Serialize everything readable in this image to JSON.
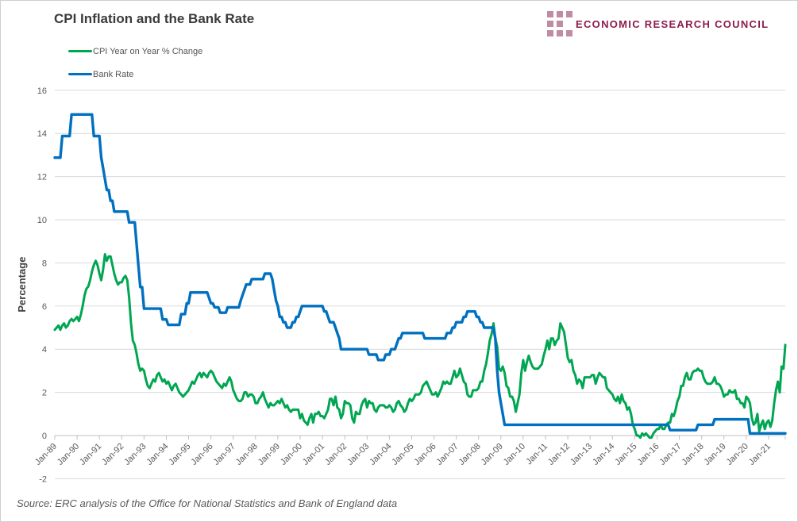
{
  "header": {
    "title": "CPI Inflation and the Bank Rate"
  },
  "logo": {
    "text": "ECONOMIC RESEARCH COUNCIL",
    "brand_color": "#8e1b4d",
    "square_color": "#bf8ca3"
  },
  "legend": [
    {
      "label": "CPI Year on Year % Change",
      "color": "#00a651"
    },
    {
      "label": "Bank Rate",
      "color": "#0070c0"
    }
  ],
  "source_note": "Source: ERC analysis of the Office for National Statistics and Bank of England data",
  "chart_data": {
    "type": "line",
    "title": "CPI Inflation and the Bank Rate",
    "xlabel": "",
    "ylabel": "Percentage",
    "ylim": [
      -2,
      16
    ],
    "ytick_interval": 2,
    "grid": "horizontal",
    "gridline_color": "#d9d9d9",
    "axis_color": "#bfbfbf",
    "tick_label_color": "#595959",
    "legend_position": "top-left",
    "x_unit": "monthly",
    "x_start": "Jan-1989",
    "x_end": "Oct-2021",
    "xtick_labels": [
      "Jan-89",
      "Jan-90",
      "Jan-91",
      "Jan-92",
      "Jan-93",
      "Jan-94",
      "Jan-95",
      "Jan-96",
      "Jan-97",
      "Jan-98",
      "Jan-99",
      "Jan-00",
      "Jan-01",
      "Jan-02",
      "Jan-03",
      "Jan-04",
      "Jan-05",
      "Jan-06",
      "Jan-07",
      "Jan-08",
      "Jan-09",
      "Jan-10",
      "Jan-11",
      "Jan-12",
      "Jan-13",
      "Jan-14",
      "Jan-15",
      "Jan-16",
      "Jan-17",
      "Jan-18",
      "Jan-19",
      "Jan-20",
      "Jan-21"
    ],
    "series": [
      {
        "name": "CPI Year on Year % Change",
        "color": "#00a651",
        "stroke_width": 3,
        "values": [
          4.9,
          5.0,
          5.1,
          4.9,
          5.1,
          5.2,
          5.0,
          5.1,
          5.3,
          5.4,
          5.3,
          5.4,
          5.5,
          5.3,
          5.6,
          6.0,
          6.5,
          6.8,
          6.9,
          7.2,
          7.6,
          7.9,
          8.1,
          7.9,
          7.5,
          7.2,
          7.7,
          8.4,
          8.1,
          8.3,
          8.3,
          7.9,
          7.5,
          7.2,
          7.0,
          7.1,
          7.1,
          7.3,
          7.4,
          7.2,
          6.4,
          5.2,
          4.4,
          4.2,
          3.8,
          3.3,
          3.0,
          3.1,
          3.0,
          2.6,
          2.3,
          2.2,
          2.4,
          2.6,
          2.5,
          2.8,
          2.9,
          2.7,
          2.5,
          2.6,
          2.4,
          2.5,
          2.3,
          2.1,
          2.3,
          2.4,
          2.2,
          2.0,
          1.9,
          1.8,
          1.9,
          2.0,
          2.1,
          2.3,
          2.5,
          2.4,
          2.6,
          2.8,
          2.9,
          2.7,
          2.9,
          2.8,
          2.7,
          2.9,
          3.0,
          2.9,
          2.7,
          2.5,
          2.4,
          2.3,
          2.2,
          2.4,
          2.3,
          2.5,
          2.7,
          2.5,
          2.1,
          1.9,
          1.7,
          1.6,
          1.6,
          1.7,
          2.0,
          2.0,
          1.8,
          1.9,
          1.9,
          1.8,
          1.5,
          1.5,
          1.7,
          1.8,
          2.0,
          1.7,
          1.5,
          1.3,
          1.5,
          1.4,
          1.4,
          1.5,
          1.6,
          1.5,
          1.7,
          1.5,
          1.3,
          1.4,
          1.2,
          1.1,
          1.2,
          1.2,
          1.2,
          1.2,
          0.8,
          1.0,
          0.7,
          0.6,
          0.5,
          0.8,
          1.0,
          0.6,
          1.0,
          1.0,
          1.1,
          0.9,
          0.9,
          0.8,
          1.0,
          1.2,
          1.7,
          1.7,
          1.4,
          1.8,
          1.3,
          1.2,
          0.8,
          1.0,
          1.6,
          1.5,
          1.5,
          1.4,
          0.8,
          0.6,
          1.1,
          1.0,
          1.0,
          1.4,
          1.6,
          1.7,
          1.3,
          1.6,
          1.5,
          1.5,
          1.2,
          1.1,
          1.3,
          1.4,
          1.4,
          1.4,
          1.3,
          1.3,
          1.4,
          1.3,
          1.1,
          1.2,
          1.5,
          1.6,
          1.4,
          1.3,
          1.1,
          1.2,
          1.5,
          1.7,
          1.6,
          1.7,
          1.9,
          1.9,
          1.9,
          2.0,
          2.3,
          2.4,
          2.5,
          2.3,
          2.1,
          1.9,
          1.9,
          2.0,
          1.8,
          2.0,
          2.2,
          2.5,
          2.4,
          2.5,
          2.4,
          2.4,
          2.7,
          3.0,
          2.7,
          2.8,
          3.1,
          2.8,
          2.5,
          2.4,
          1.9,
          1.8,
          1.8,
          2.1,
          2.1,
          2.1,
          2.2,
          2.5,
          2.5,
          3.0,
          3.3,
          3.8,
          4.4,
          4.7,
          5.2,
          4.5,
          4.1,
          3.1,
          3.0,
          3.2,
          2.9,
          2.3,
          2.2,
          1.8,
          1.8,
          1.6,
          1.1,
          1.5,
          1.9,
          2.9,
          3.5,
          3.0,
          3.4,
          3.7,
          3.4,
          3.2,
          3.1,
          3.1,
          3.1,
          3.2,
          3.3,
          3.7,
          4.0,
          4.4,
          4.0,
          4.5,
          4.5,
          4.2,
          4.4,
          4.5,
          5.2,
          5.0,
          4.8,
          4.2,
          3.6,
          3.4,
          3.5,
          3.0,
          2.8,
          2.4,
          2.6,
          2.5,
          2.2,
          2.7,
          2.7,
          2.7,
          2.7,
          2.8,
          2.8,
          2.4,
          2.7,
          2.9,
          2.8,
          2.7,
          2.7,
          2.2,
          2.1,
          2.0,
          1.9,
          1.7,
          1.6,
          1.8,
          1.5,
          1.9,
          1.6,
          1.5,
          1.2,
          1.3,
          1.0,
          0.5,
          0.3,
          0.0,
          0.0,
          -0.1,
          0.1,
          0.0,
          0.1,
          0.0,
          -0.1,
          -0.1,
          0.1,
          0.2,
          0.3,
          0.3,
          0.5,
          0.3,
          0.3,
          0.5,
          0.6,
          0.6,
          1.0,
          0.9,
          1.2,
          1.6,
          1.8,
          2.3,
          2.3,
          2.7,
          2.9,
          2.6,
          2.6,
          2.9,
          3.0,
          3.0,
          3.1,
          3.0,
          3.0,
          2.7,
          2.5,
          2.4,
          2.4,
          2.4,
          2.5,
          2.7,
          2.4,
          2.4,
          2.3,
          2.1,
          1.8,
          1.9,
          1.9,
          2.1,
          2.0,
          2.0,
          2.1,
          1.7,
          1.7,
          1.5,
          1.5,
          1.3,
          1.8,
          1.7,
          1.5,
          0.8,
          0.5,
          0.6,
          1.0,
          0.2,
          0.5,
          0.7,
          0.3,
          0.6,
          0.7,
          0.4,
          0.7,
          1.5,
          2.1,
          2.5,
          2.0,
          3.2,
          3.1,
          4.2
        ]
      },
      {
        "name": "Bank Rate",
        "color": "#0070c0",
        "stroke_width": 3.4,
        "values": [
          12.88,
          12.88,
          12.88,
          12.88,
          13.88,
          13.88,
          13.88,
          13.88,
          13.88,
          14.88,
          14.88,
          14.88,
          14.88,
          14.88,
          14.88,
          14.88,
          14.88,
          14.88,
          14.88,
          14.88,
          14.88,
          13.88,
          13.88,
          13.88,
          13.88,
          12.88,
          12.38,
          11.88,
          11.38,
          11.38,
          10.88,
          10.88,
          10.38,
          10.38,
          10.38,
          10.38,
          10.38,
          10.38,
          10.38,
          10.38,
          9.88,
          9.88,
          9.88,
          9.88,
          8.88,
          7.88,
          6.88,
          6.88,
          5.88,
          5.88,
          5.88,
          5.88,
          5.88,
          5.88,
          5.88,
          5.88,
          5.88,
          5.88,
          5.38,
          5.38,
          5.38,
          5.13,
          5.13,
          5.13,
          5.13,
          5.13,
          5.13,
          5.13,
          5.63,
          5.63,
          5.63,
          6.13,
          6.13,
          6.63,
          6.63,
          6.63,
          6.63,
          6.63,
          6.63,
          6.63,
          6.63,
          6.63,
          6.63,
          6.38,
          6.13,
          6.13,
          5.94,
          5.94,
          5.94,
          5.69,
          5.69,
          5.69,
          5.69,
          5.94,
          5.94,
          5.94,
          5.94,
          5.94,
          5.94,
          5.94,
          6.25,
          6.5,
          6.75,
          7.0,
          7.0,
          7.0,
          7.25,
          7.25,
          7.25,
          7.25,
          7.25,
          7.25,
          7.25,
          7.5,
          7.5,
          7.5,
          7.5,
          7.25,
          6.75,
          6.25,
          6.0,
          5.5,
          5.5,
          5.25,
          5.25,
          5.0,
          5.0,
          5.0,
          5.25,
          5.25,
          5.5,
          5.5,
          5.75,
          6.0,
          6.0,
          6.0,
          6.0,
          6.0,
          6.0,
          6.0,
          6.0,
          6.0,
          6.0,
          6.0,
          6.0,
          5.75,
          5.75,
          5.5,
          5.25,
          5.25,
          5.25,
          5.0,
          4.75,
          4.5,
          4.0,
          4.0,
          4.0,
          4.0,
          4.0,
          4.0,
          4.0,
          4.0,
          4.0,
          4.0,
          4.0,
          4.0,
          4.0,
          4.0,
          4.0,
          3.75,
          3.75,
          3.75,
          3.75,
          3.75,
          3.5,
          3.5,
          3.5,
          3.5,
          3.75,
          3.75,
          3.75,
          4.0,
          4.0,
          4.0,
          4.25,
          4.5,
          4.5,
          4.75,
          4.75,
          4.75,
          4.75,
          4.75,
          4.75,
          4.75,
          4.75,
          4.75,
          4.75,
          4.75,
          4.75,
          4.5,
          4.5,
          4.5,
          4.5,
          4.5,
          4.5,
          4.5,
          4.5,
          4.5,
          4.5,
          4.5,
          4.5,
          4.75,
          4.75,
          4.75,
          5.0,
          5.0,
          5.25,
          5.25,
          5.25,
          5.25,
          5.5,
          5.5,
          5.75,
          5.75,
          5.75,
          5.75,
          5.75,
          5.5,
          5.5,
          5.25,
          5.25,
          5.0,
          5.0,
          5.0,
          5.0,
          5.0,
          5.0,
          4.5,
          3.0,
          2.0,
          1.5,
          1.0,
          0.5,
          0.5,
          0.5,
          0.5,
          0.5,
          0.5,
          0.5,
          0.5,
          0.5,
          0.5,
          0.5,
          0.5,
          0.5,
          0.5,
          0.5,
          0.5,
          0.5,
          0.5,
          0.5,
          0.5,
          0.5,
          0.5,
          0.5,
          0.5,
          0.5,
          0.5,
          0.5,
          0.5,
          0.5,
          0.5,
          0.5,
          0.5,
          0.5,
          0.5,
          0.5,
          0.5,
          0.5,
          0.5,
          0.5,
          0.5,
          0.5,
          0.5,
          0.5,
          0.5,
          0.5,
          0.5,
          0.5,
          0.5,
          0.5,
          0.5,
          0.5,
          0.5,
          0.5,
          0.5,
          0.5,
          0.5,
          0.5,
          0.5,
          0.5,
          0.5,
          0.5,
          0.5,
          0.5,
          0.5,
          0.5,
          0.5,
          0.5,
          0.5,
          0.5,
          0.5,
          0.5,
          0.5,
          0.5,
          0.5,
          0.5,
          0.5,
          0.5,
          0.5,
          0.5,
          0.5,
          0.5,
          0.5,
          0.5,
          0.5,
          0.5,
          0.5,
          0.5,
          0.5,
          0.5,
          0.25,
          0.25,
          0.25,
          0.25,
          0.25,
          0.25,
          0.25,
          0.25,
          0.25,
          0.25,
          0.25,
          0.25,
          0.25,
          0.25,
          0.25,
          0.5,
          0.5,
          0.5,
          0.5,
          0.5,
          0.5,
          0.5,
          0.5,
          0.5,
          0.75,
          0.75,
          0.75,
          0.75,
          0.75,
          0.75,
          0.75,
          0.75,
          0.75,
          0.75,
          0.75,
          0.75,
          0.75,
          0.75,
          0.75,
          0.75,
          0.75,
          0.75,
          0.75,
          0.1,
          0.1,
          0.1,
          0.1,
          0.1,
          0.1,
          0.1,
          0.1,
          0.1,
          0.1,
          0.1,
          0.1,
          0.1,
          0.1,
          0.1,
          0.1,
          0.1,
          0.1,
          0.1,
          0.1
        ]
      }
    ]
  }
}
